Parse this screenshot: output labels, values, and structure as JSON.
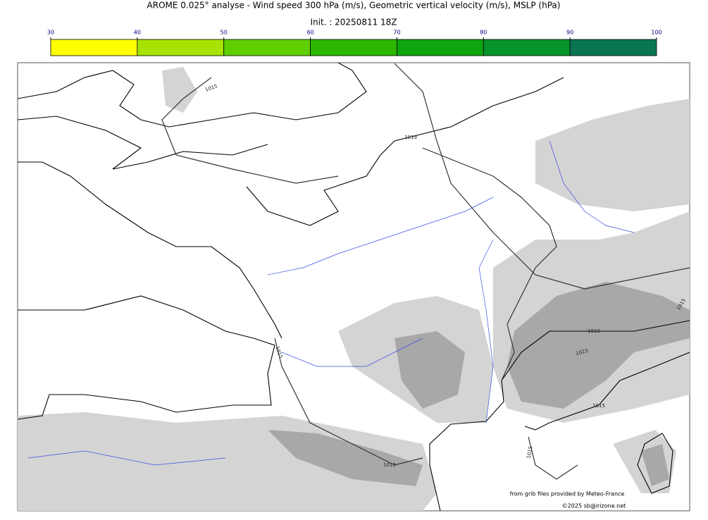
{
  "title": "AROME 0.025° analyse - Wind speed 300 hPa (m/s), Geometric vertical velocity (m/s), MSLP (hPa)",
  "init": "Init. : 20250811 18Z",
  "colorbar": {
    "ticks": [
      30,
      40,
      50,
      60,
      70,
      80,
      90,
      100
    ],
    "colors": [
      "#ffff00",
      "#a6e300",
      "#5fcf00",
      "#2cb800",
      "#0da60f",
      "#06932a",
      "#0a7553"
    ]
  },
  "isobar_labels": [
    "1015",
    "1019",
    "1023",
    "1023",
    "1015",
    "1015",
    "1015",
    "1015",
    "1015"
  ],
  "credits": [
    "from grib files provided by Meteo-France",
    "©2025 sb@irizone.net"
  ]
}
